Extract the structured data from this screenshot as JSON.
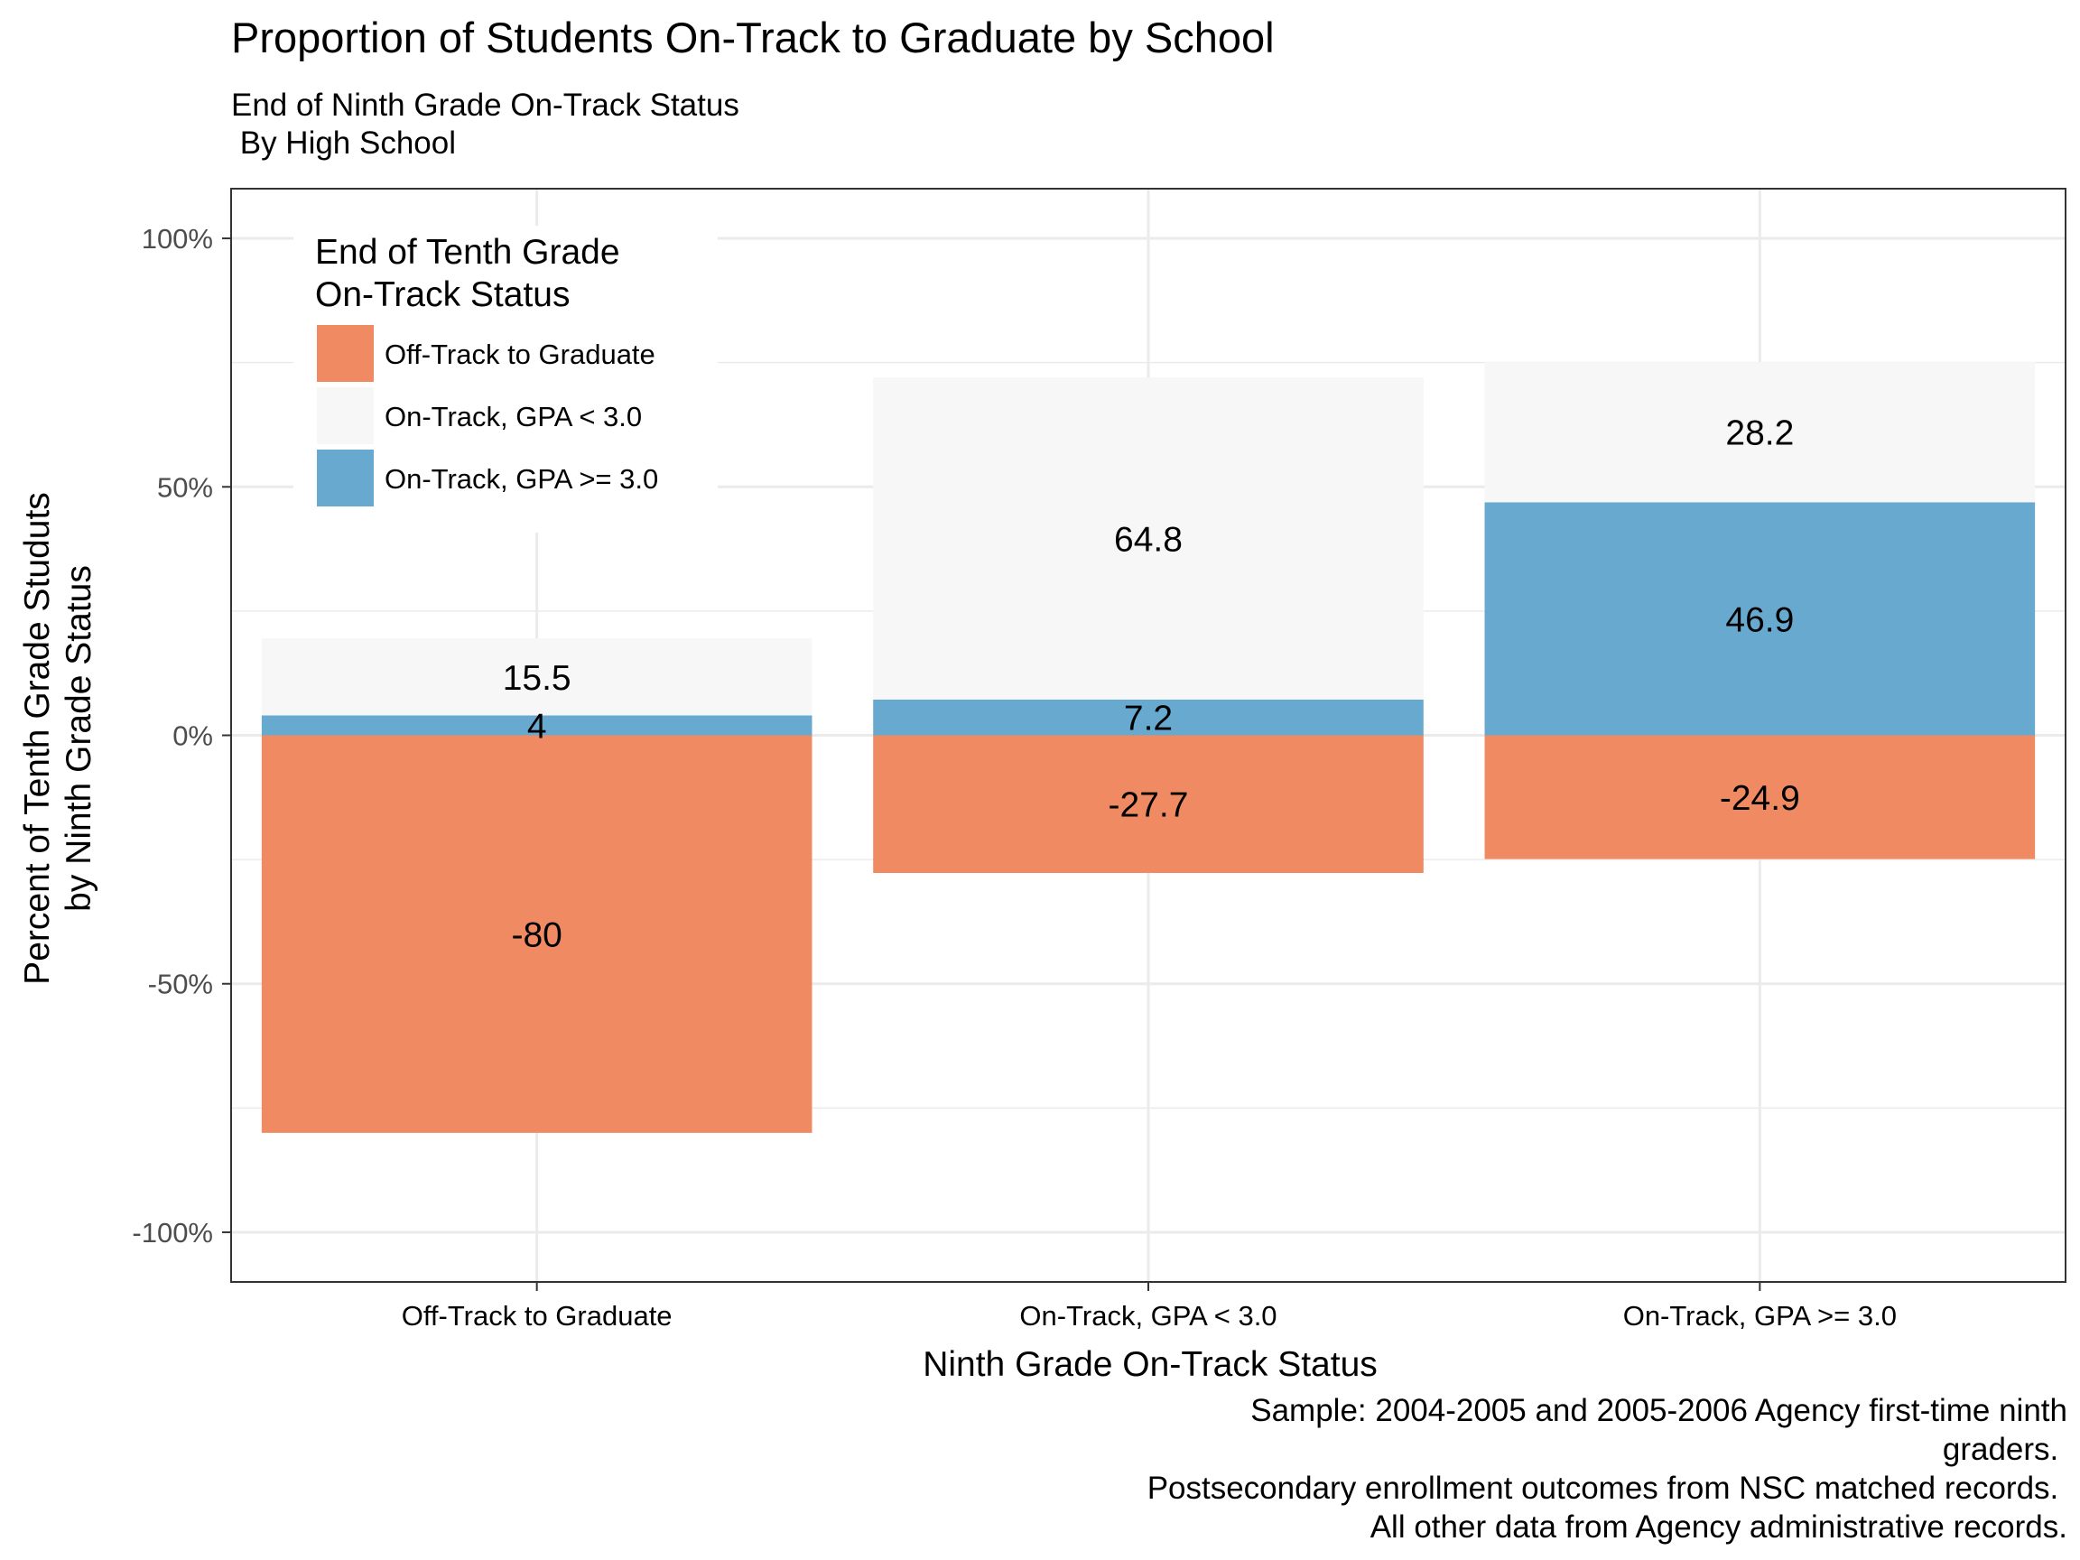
{
  "chart_data": {
    "type": "bar",
    "stacked": true,
    "title": "Proportion of Students On-Track to Graduate by School",
    "subtitle": [
      "End of Ninth Grade On-Track Status",
      " By High School"
    ],
    "xlabel": "Ninth Grade On-Track Status",
    "ylabel": [
      "Percent of Tenth Grade Studuts",
      "by Ninth Grade Status"
    ],
    "categories": [
      "Off-Track to Graduate",
      "On-Track, GPA < 3.0",
      "On-Track, GPA >= 3.0"
    ],
    "ylim": [
      -110,
      110
    ],
    "yticks": [
      -100,
      -50,
      0,
      50,
      100
    ],
    "ytick_labels": [
      "-100%",
      "-50%",
      "0%",
      "50%",
      "100%"
    ],
    "grid": true,
    "legend": {
      "title": [
        "End of Tenth Grade",
        " On-Track Status"
      ],
      "position": "top-left"
    },
    "series": [
      {
        "name": "Off-Track to Graduate",
        "color": "#ef8a62",
        "values": [
          -80,
          -27.7,
          -24.9
        ],
        "labels": [
          "-80",
          "-27.7",
          "-24.9"
        ]
      },
      {
        "name": "On-Track, GPA >= 3.0",
        "color": "#67a9cf",
        "values": [
          4,
          7.2,
          46.9
        ],
        "labels": [
          "4",
          "7.2",
          "46.9"
        ]
      },
      {
        "name": "On-Track, GPA < 3.0",
        "color": "#f7f7f7",
        "values": [
          15.5,
          64.8,
          28.2
        ],
        "labels": [
          "15.5",
          "64.8",
          "28.2"
        ]
      }
    ],
    "legend_order": [
      "Off-Track to Graduate",
      "On-Track, GPA < 3.0",
      "On-Track, GPA >= 3.0"
    ],
    "caption": [
      "Sample: 2004-2005 and 2005-2006 Agency first-time ninth",
      "graders. ",
      "Postsecondary enrollment outcomes from NSC matched records. ",
      "All other data from Agency administrative records."
    ]
  }
}
